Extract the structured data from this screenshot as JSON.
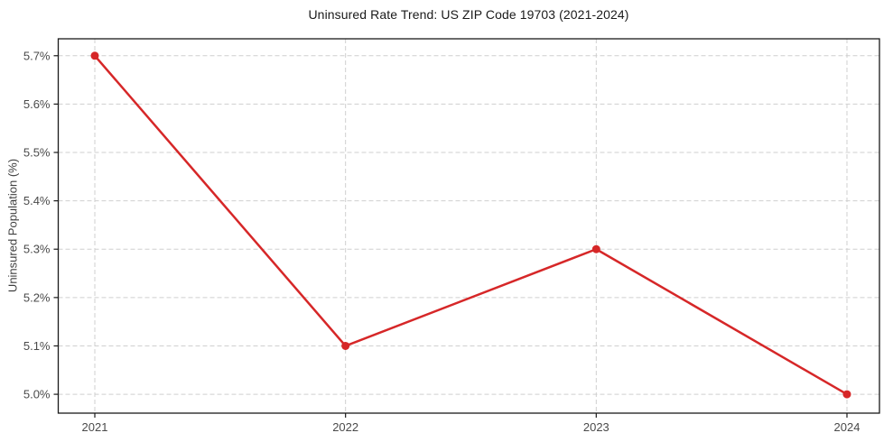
{
  "chart_data": {
    "type": "line",
    "title": "Uninsured Rate Trend: US ZIP Code 19703 (2021-2024)",
    "xlabel": "",
    "ylabel": "Uninsured Population (%)",
    "categories": [
      "2021",
      "2022",
      "2023",
      "2024"
    ],
    "series": [
      {
        "name": "Uninsured Population (%)",
        "values": [
          5.7,
          5.1,
          5.3,
          5.0
        ]
      }
    ],
    "yticks": [
      5.0,
      5.1,
      5.2,
      5.3,
      5.4,
      5.5,
      5.6,
      5.7
    ],
    "ytick_labels": [
      "5.0%",
      "5.1%",
      "5.2%",
      "5.3%",
      "5.4%",
      "5.5%",
      "5.6%",
      "5.7%"
    ],
    "ylim": [
      4.961,
      5.735
    ],
    "grid": true,
    "grid_style": "dashed",
    "legend_position": "none",
    "colors": {
      "line": "#d62728",
      "marker": "#d62728",
      "grid": "#cfcfcf",
      "spine": "#1a1a1a",
      "tick_text": "#4a4a4a",
      "background": "#ffffff"
    }
  }
}
